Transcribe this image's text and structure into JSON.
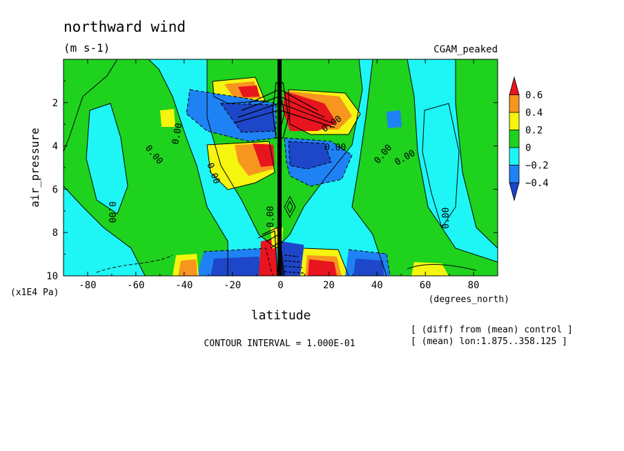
{
  "chart_data": {
    "type": "heatmap",
    "title": "northward wind",
    "subtitle": "(m s-1)",
    "experiment": "CGAM_peaked",
    "xlabel": "latitude",
    "x_units": "(degrees_north)",
    "ylabel": "air_pressure",
    "y_units": "(x1E4 Pa)",
    "xlim": [
      -90,
      90
    ],
    "ylim": [
      10,
      0
    ],
    "x_ticks": [
      -80,
      -60,
      -40,
      -20,
      0,
      20,
      40,
      60,
      80
    ],
    "y_ticks": [
      2,
      4,
      6,
      8,
      10
    ],
    "contour_interval": "CONTOUR INTERVAL = 1.000E-01",
    "notes": [
      "[ (diff) from (mean) control ]",
      "[ (mean) lon:1.875..358.125 ]"
    ],
    "colorbar": {
      "labels": [
        "0.6",
        "0.4",
        "0.2",
        "0",
        "-0.2",
        "-0.4"
      ],
      "colors": [
        "#e8141e",
        "#f7961e",
        "#f5f50f",
        "#1ed21e",
        "#1ef5f5",
        "#1e82f5",
        "#1e46c8"
      ]
    },
    "contour_labels": [
      "0.00",
      "0.00",
      "0.00",
      "0.00",
      "0.00",
      "0.00",
      "0.00",
      "0.00",
      "0.00",
      "0.00"
    ],
    "features": [
      {
        "lat": -10,
        "p": 4.3,
        "v": 0.55
      },
      {
        "lat": -30,
        "p": 4.8,
        "v": 0.25
      },
      {
        "lat": -20,
        "p": 2.5,
        "v": -0.4
      },
      {
        "lat": 15,
        "p": 2.4,
        "v": 0.6
      },
      {
        "lat": 15,
        "p": 4.5,
        "v": -0.45
      },
      {
        "lat": -15,
        "p": 9.5,
        "v": -0.45
      },
      {
        "lat": 17,
        "p": 9.6,
        "v": 0.5
      },
      {
        "lat": -40,
        "p": 9.6,
        "v": 0.3
      },
      {
        "lat": 38,
        "p": 9.6,
        "v": -0.4
      },
      {
        "lat": -57,
        "p": 2.8,
        "v": 0.25
      },
      {
        "lat": 57,
        "p": 3.0,
        "v": -0.3
      }
    ]
  }
}
